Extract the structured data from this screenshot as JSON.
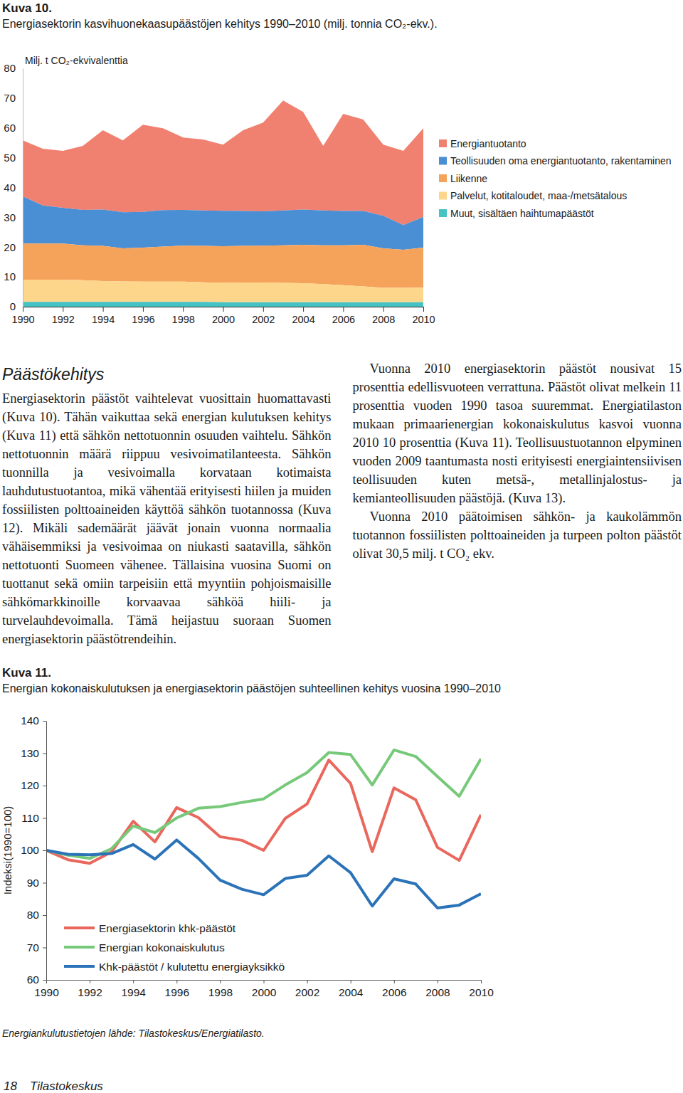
{
  "chart_data": [
    {
      "type": "area",
      "stacked": true,
      "title": "Kuva 10.",
      "subtitle": "Energiasektorin kasvihuonekaasupäästöjen kehitys 1990–2010 (milj. tonnia CO₂-ekv.).",
      "y_label": "Milj. t CO₂-ekvivalenttia",
      "x": [
        1990,
        1991,
        1992,
        1993,
        1994,
        1995,
        1996,
        1997,
        1998,
        1999,
        2000,
        2001,
        2002,
        2003,
        2004,
        2005,
        2006,
        2007,
        2008,
        2009,
        2010
      ],
      "series": [
        {
          "name": "Energiantuotanto",
          "color": "#f08171",
          "values": [
            18.8,
            19.0,
            19.1,
            21.5,
            26.6,
            24.1,
            29.3,
            27.5,
            24.3,
            23.8,
            22.2,
            27.1,
            29.8,
            36.9,
            32.8,
            21.7,
            32.6,
            30.7,
            23.9,
            24.9,
            29.8
          ]
        },
        {
          "name": "Teollisuuden oma energiantuotanto, rakentaminen",
          "color": "#4a8ed3",
          "values": [
            15.8,
            12.8,
            12.0,
            11.9,
            12.2,
            12.1,
            12.0,
            12.2,
            12.0,
            11.9,
            11.9,
            11.7,
            11.5,
            11.7,
            11.8,
            11.7,
            11.5,
            11.3,
            10.9,
            8.3,
            10.3
          ]
        },
        {
          "name": "Liikenne",
          "color": "#f5a35a",
          "values": [
            12.1,
            12.1,
            12.1,
            11.7,
            11.8,
            11.1,
            11.4,
            11.8,
            12.1,
            12.2,
            12.3,
            12.3,
            12.4,
            12.6,
            12.9,
            13.0,
            13.4,
            14.0,
            13.3,
            12.8,
            13.4
          ]
        },
        {
          "name": "Palvelut, kotitaloudet, maa-/metsätalous",
          "color": "#fdd68c",
          "values": [
            7.5,
            7.5,
            7.5,
            7.3,
            7.0,
            6.9,
            6.8,
            6.8,
            6.8,
            6.6,
            6.5,
            6.6,
            6.6,
            6.5,
            6.4,
            6.1,
            5.7,
            5.3,
            4.8,
            4.8,
            4.9
          ]
        },
        {
          "name": "Muut, sisältäen haihtumapäästöt",
          "color": "#44c2c4",
          "values": [
            1.6,
            1.6,
            1.6,
            1.6,
            1.6,
            1.6,
            1.6,
            1.6,
            1.6,
            1.6,
            1.5,
            1.5,
            1.5,
            1.5,
            1.5,
            1.5,
            1.5,
            1.5,
            1.5,
            1.5,
            1.5
          ]
        }
      ],
      "xlim": [
        1990,
        2010
      ],
      "xticks": [
        1990,
        1992,
        1994,
        1996,
        1998,
        2000,
        2002,
        2004,
        2006,
        2008,
        2010
      ],
      "ylim": [
        0,
        80
      ],
      "yticks": [
        0,
        10,
        20,
        30,
        40,
        50,
        60,
        70,
        80
      ],
      "legend": "right"
    },
    {
      "type": "line",
      "title": "Kuva 11.",
      "subtitle": "Energian kokonaiskulutuksen ja energiasektorin päästöjen suhteellinen kehitys vuosina 1990–2010",
      "y_label": "Indeksi(1990=100)",
      "x": [
        1990,
        1991,
        1992,
        1993,
        1994,
        1995,
        1996,
        1997,
        1998,
        1999,
        2000,
        2001,
        2002,
        2003,
        2004,
        2005,
        2006,
        2007,
        2008,
        2009,
        2010
      ],
      "series": [
        {
          "name": "Energiasektorin khk-päästöt",
          "color": "#e9675d",
          "values": [
            100,
            97.1,
            96.0,
            99.5,
            109.0,
            102.6,
            113.2,
            110.1,
            104.2,
            103.1,
            100.0,
            109.9,
            114.3,
            127.9,
            120.7,
            99.6,
            119.3,
            115.6,
            100.9,
            96.9,
            111.0
          ]
        },
        {
          "name": "Energian kokonaiskulutus",
          "color": "#77c97a",
          "values": [
            100,
            98.5,
            97.5,
            100.5,
            107.5,
            105.5,
            110.0,
            113.0,
            113.5,
            114.8,
            115.9,
            120.2,
            124.0,
            130.2,
            129.6,
            120.2,
            131.0,
            129.0,
            122.8,
            116.7,
            128.3
          ]
        },
        {
          "name": "Khk-päästöt / kulutettu energiayksikkö",
          "color": "#2b73b8",
          "values": [
            100,
            98.8,
            98.6,
            99.0,
            101.8,
            97.3,
            103.2,
            97.5,
            90.8,
            88.0,
            86.3,
            91.3,
            92.3,
            98.3,
            93.1,
            82.8,
            91.2,
            89.6,
            82.2,
            83.1,
            86.6
          ]
        }
      ],
      "xlim": [
        1990,
        2010
      ],
      "xticks": [
        1990,
        1992,
        1994,
        1996,
        1998,
        2000,
        2002,
        2004,
        2006,
        2008,
        2010
      ],
      "ylim": [
        60,
        140
      ],
      "yticks": [
        60,
        70,
        80,
        90,
        100,
        110,
        120,
        130,
        140
      ],
      "legend": "lower left"
    }
  ],
  "page": {
    "heading": "Päästökehitys",
    "paragraphs": [
      "Energiasektorin päästöt vaihtelevat vuosittain huomattavasti (Kuva 10). Tähän vaikuttaa sekä energian kulutuksen kehitys (Kuva 11) että sähkön nettotuonnin osuuden vaihtelu. Sähkön nettotuonnin määrä riippuu vesivoimatilanteesta. Sähkön tuonnilla ja vesivoimalla korvataan kotimaista lauhdutustuotantoa, mikä vähentää erityisesti hiilen ja muiden fossiilisten polttoaineiden käyttöä sähkön tuotannossa (Kuva 12). Mikäli sademäärät jäävät jonain vuonna normaalia vähäisemmiksi ja vesivoimaa on niukasti saatavilla, sähkön nettotuonti Suomeen vähenee. Tällaisina vuosina Suomi on tuottanut sekä omiin tarpeisiin että myyntiin pohjoismaisille sähkömarkkinoille korvaavaa sähköä hiili- ja turvelauhdevoimalla. Tämä heijastuu suoraan Suomen energiasektorin päästötrendeihin.",
      "Vuonna 2010 energiasektorin päästöt nousivat 15 prosenttia edellisvuoteen verrattuna. Päästöt olivat melkein 11 prosenttia vuoden 1990 tasoa suuremmat. Energiatilaston mukaan primaarienergian kokonaiskulutus kasvoi vuonna 2010 10 prosenttia (Kuva 11). Teollisuustuotannon elpyminen vuoden 2009 taantumasta nosti erityisesti energiaintensiivisen teollisuuden kuten metsä-, metallinjalostus- ja kemianteollisuuden päästöjä. (Kuva 13).",
      "Vuonna 2010 päätoimisen sähkön- ja kaukolämmön tuotannon fossiilisten polttoaineiden ja turpeen polton päästöt olivat 30,5 milj. t CO₂ ekv."
    ],
    "source": "Energiankulutustietojen lähde: Tilastokeskus/Energiatilasto.",
    "page_number": 18,
    "footer": "Tilastokeskus"
  }
}
